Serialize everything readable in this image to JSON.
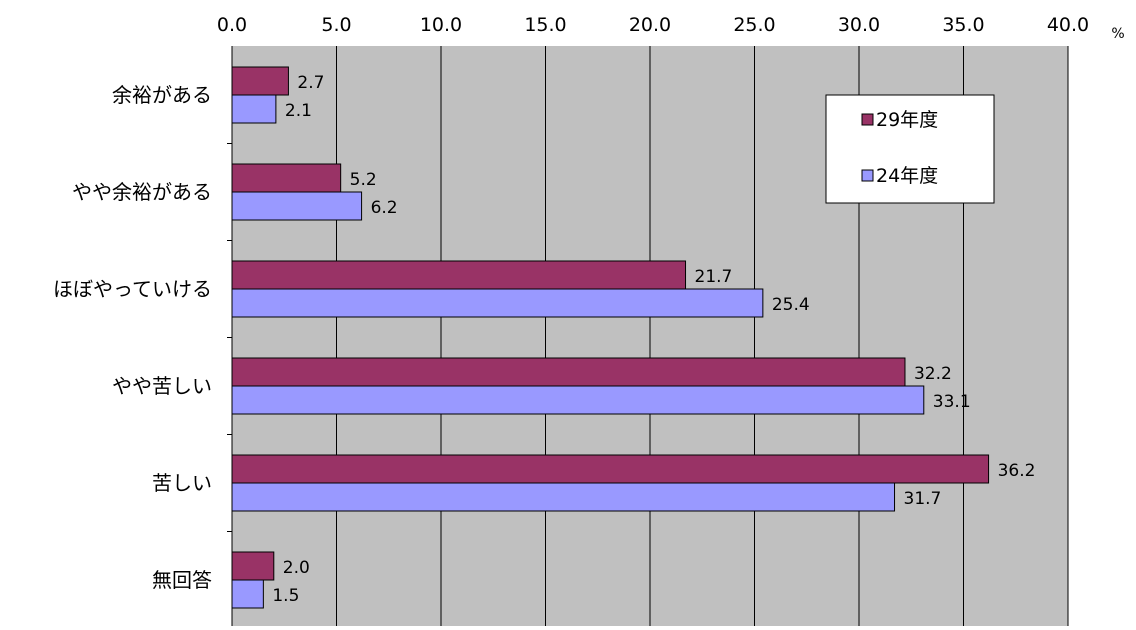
{
  "chart_data": {
    "type": "bar",
    "orientation": "horizontal",
    "categories": [
      "余裕がある",
      "やや余裕がある",
      "ほぼやっていける",
      "やや苦しい",
      "苦しい",
      "無回答"
    ],
    "series": [
      {
        "name": "29年度",
        "values": [
          2.7,
          5.2,
          21.7,
          32.2,
          36.2,
          2.0
        ],
        "value_labels": [
          "2.7",
          "5.2",
          "21.7",
          "32.2",
          "36.2",
          "2.0"
        ],
        "color": "#993366"
      },
      {
        "name": "24年度",
        "values": [
          2.1,
          6.2,
          25.4,
          33.1,
          31.7,
          1.5
        ],
        "value_labels": [
          "2.1",
          "6.2",
          "25.4",
          "33.1",
          "31.7",
          "1.5"
        ],
        "color": "#9999FF"
      }
    ],
    "xlim": [
      0,
      40
    ],
    "x_ticks": [
      "0.0",
      "5.0",
      "10.0",
      "15.0",
      "20.0",
      "25.0",
      "30.0",
      "35.0",
      "40.0"
    ],
    "unit": "%",
    "plot_background": "#C0C0C0",
    "grid": true,
    "legend_position": "top-right",
    "title": "",
    "xlabel": "",
    "ylabel": ""
  }
}
